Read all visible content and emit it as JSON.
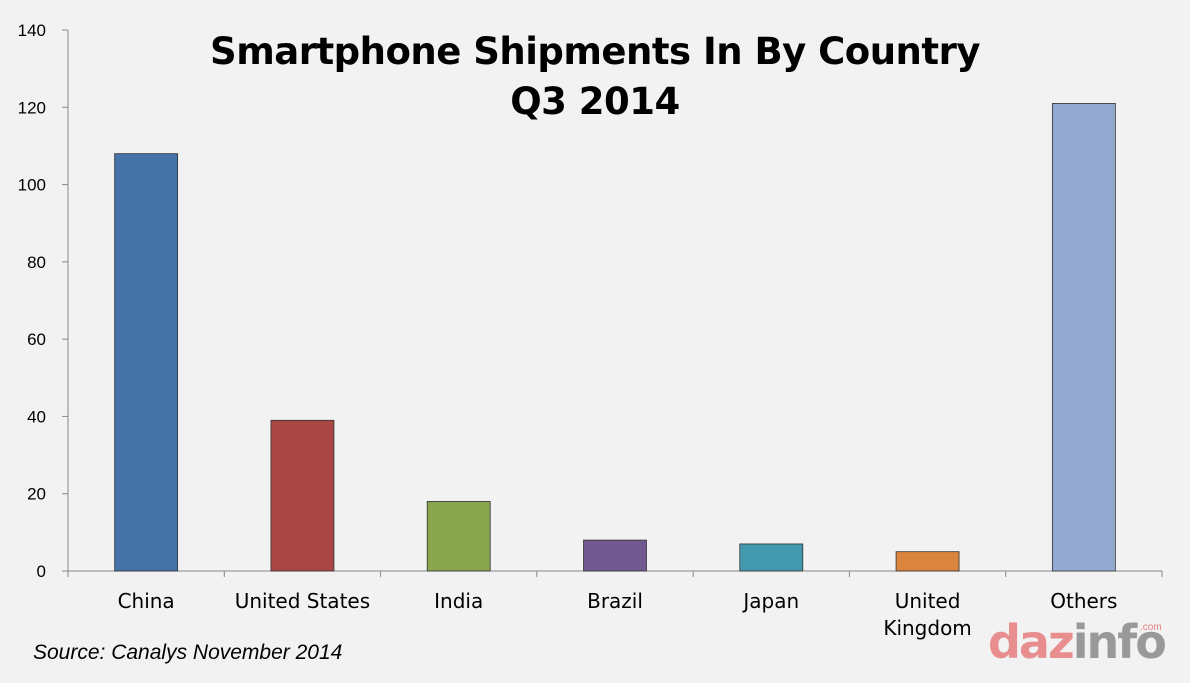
{
  "chart_data": {
    "type": "bar",
    "title": "Smartphone Shipments In By Country",
    "subtitle": "Q3 2014",
    "categories": [
      "China",
      "United States",
      "India",
      "Brazil",
      "Japan",
      "United Kingdom",
      "Others"
    ],
    "category_lines": [
      [
        "China"
      ],
      [
        "United States"
      ],
      [
        "India"
      ],
      [
        "Brazil"
      ],
      [
        "Japan"
      ],
      [
        "United",
        "Kingdom"
      ],
      [
        "Others"
      ]
    ],
    "values": [
      108,
      39,
      18,
      8,
      7,
      5,
      121
    ],
    "colors": [
      "#4572a7",
      "#aa4643",
      "#89a54e",
      "#71588f",
      "#4198af",
      "#db843d",
      "#93a9cf"
    ],
    "ylim": [
      0,
      140
    ],
    "yticks": [
      0,
      20,
      40,
      60,
      80,
      100,
      120,
      140
    ],
    "grid": false,
    "legend": "none"
  },
  "source": "Source: Canalys November 2014",
  "logo": {
    "part_a": "daz",
    "part_b": "info",
    "suffix": ".com"
  }
}
